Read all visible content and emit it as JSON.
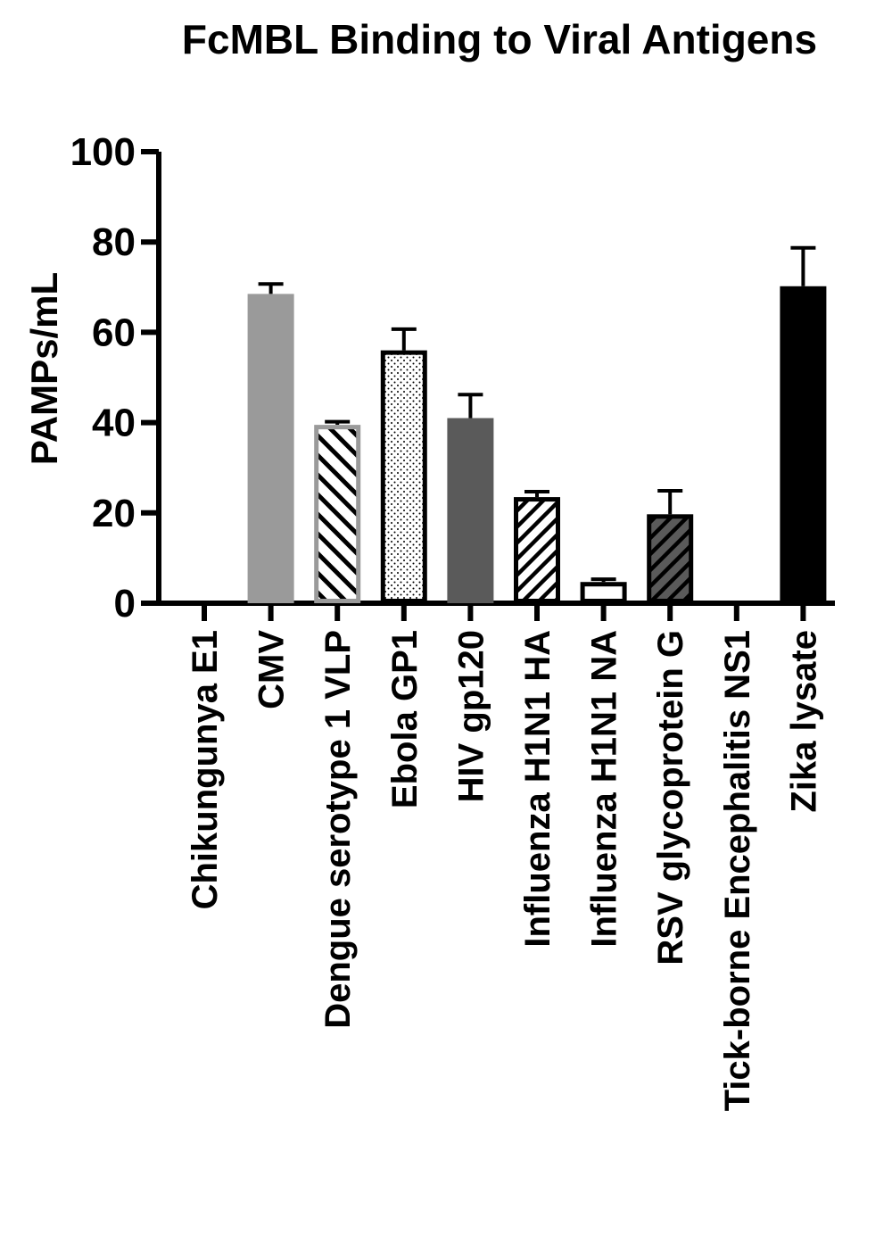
{
  "chart_data": {
    "type": "bar",
    "title": "FcMBL Binding to Viral Antigens",
    "xlabel": "",
    "ylabel": "PAMPs/mL",
    "ylim": [
      0,
      100
    ],
    "yticks": [
      0,
      20,
      40,
      60,
      80,
      100
    ],
    "grid": false,
    "legend": "none",
    "categories": [
      "Chikungunya E1",
      "CMV",
      "Dengue serotype 1 VLP",
      "Ebola GP1",
      "HIV gp120",
      "Influenza H1N1 HA",
      "Influenza H1N1 NA",
      "RSV glycoprotein G",
      "Tick-borne Encephalitis NS1",
      "Zika lysate"
    ],
    "values": [
      0,
      68.5,
      39.5,
      56,
      41,
      23.5,
      4.7,
      19.7,
      0,
      70.2
    ],
    "errors": [
      0,
      2.2,
      0.7,
      4.7,
      5.2,
      1.2,
      0.6,
      5.2,
      0,
      8.5
    ],
    "bar_styles": [
      {
        "fill": "#ffffff",
        "pattern": "none",
        "stroke": "#000000"
      },
      {
        "fill": "#9a9a9a",
        "pattern": "none",
        "stroke": "#9a9a9a"
      },
      {
        "fill": "#ffffff",
        "pattern": "hatch-backslash",
        "stroke": "#9a9a9a"
      },
      {
        "fill": "#ffffff",
        "pattern": "dots",
        "stroke": "#000000"
      },
      {
        "fill": "#5a5a5a",
        "pattern": "none",
        "stroke": "#5a5a5a"
      },
      {
        "fill": "#ffffff",
        "pattern": "hatch-slash",
        "stroke": "#000000"
      },
      {
        "fill": "#ffffff",
        "pattern": "none",
        "stroke": "#000000"
      },
      {
        "fill": "#5a5a5a",
        "pattern": "hatch-slash",
        "stroke": "#000000"
      },
      {
        "fill": "#ffffff",
        "pattern": "none",
        "stroke": "#000000"
      },
      {
        "fill": "#000000",
        "pattern": "none",
        "stroke": "#000000"
      }
    ]
  }
}
